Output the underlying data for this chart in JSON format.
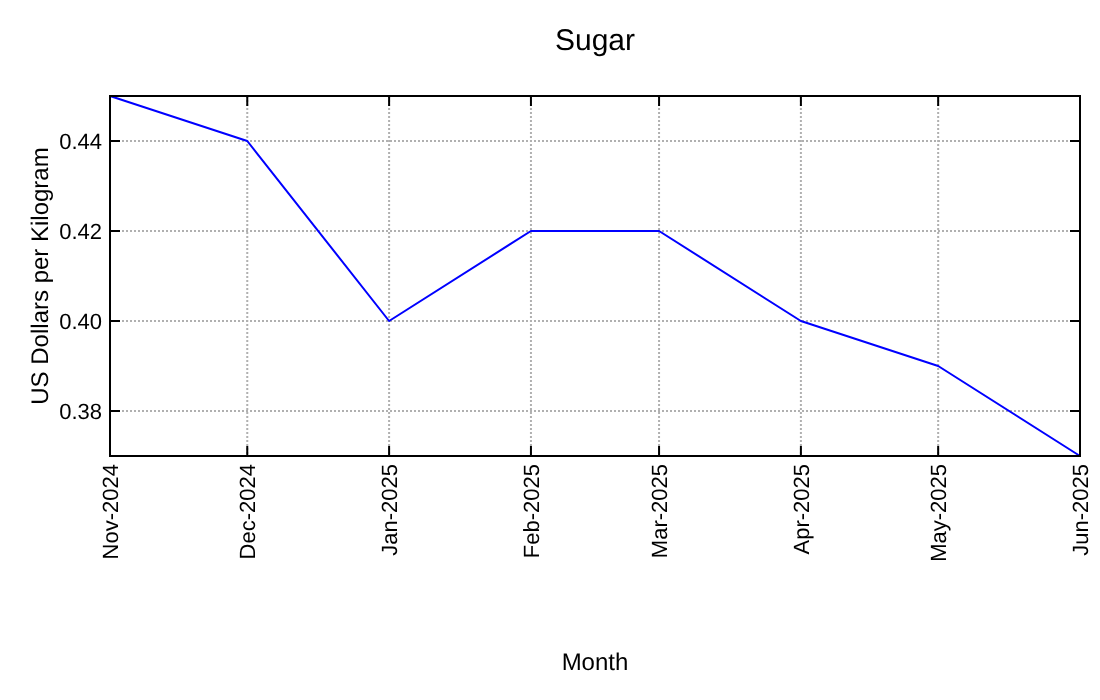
{
  "chart_data": {
    "type": "line",
    "title": "Sugar",
    "xlabel": "Month",
    "ylabel": "US Dollars per Kilogram",
    "x": [
      "2024-11",
      "2024-12",
      "2025-01",
      "2025-02",
      "2025-03",
      "2025-04",
      "2025-05",
      "2025-06"
    ],
    "series": [
      {
        "color": "#0000ff",
        "values": [
          0.45,
          0.44,
          0.4,
          0.42,
          0.42,
          0.4,
          0.39,
          0.37
        ]
      }
    ],
    "xlim": [
      "2024-11",
      "2025-06"
    ],
    "xticks": [
      {
        "value": "2024-11",
        "label": "Nov-2024"
      },
      {
        "value": "2024-12",
        "label": "Dec-2024"
      },
      {
        "value": "2025-01",
        "label": "Jan-2025"
      },
      {
        "value": "2025-02",
        "label": "Feb-2025"
      },
      {
        "value": "2025-03",
        "label": "Mar-2025"
      },
      {
        "value": "2025-04",
        "label": "Apr-2025"
      },
      {
        "value": "2025-05",
        "label": "May-2025"
      },
      {
        "value": "2025-06",
        "label": "Jun-2025"
      }
    ],
    "ylim": [
      0.37,
      0.45
    ],
    "yticks": [
      {
        "value": 0.38,
        "label": "0.38"
      },
      {
        "value": 0.4,
        "label": "0.40"
      },
      {
        "value": 0.42,
        "label": "0.42"
      },
      {
        "value": 0.44,
        "label": "0.44"
      }
    ],
    "grid": true,
    "marker": "none",
    "line_style": "solid"
  }
}
